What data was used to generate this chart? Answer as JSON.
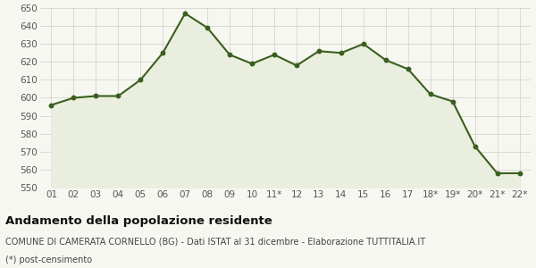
{
  "x_labels": [
    "01",
    "02",
    "03",
    "04",
    "05",
    "06",
    "07",
    "08",
    "09",
    "10",
    "11*",
    "12",
    "13",
    "14",
    "15",
    "16",
    "17",
    "18*",
    "19*",
    "20*",
    "21*",
    "22*"
  ],
  "y_values": [
    596,
    600,
    601,
    601,
    610,
    625,
    647,
    639,
    624,
    619,
    624,
    618,
    626,
    625,
    630,
    621,
    616,
    602,
    598,
    573,
    558,
    558
  ],
  "ylim": [
    550,
    650
  ],
  "yticks": [
    550,
    560,
    570,
    580,
    590,
    600,
    610,
    620,
    630,
    640,
    650
  ],
  "line_color": "#3a5f1e",
  "fill_color": "#eaeedf",
  "marker": "o",
  "marker_size": 3.2,
  "line_width": 1.5,
  "bg_color": "#f7f7f2",
  "grid_color": "#d0d0c8",
  "title": "Andamento della popolazione residente",
  "subtitle": "COMUNE DI CAMERATA CORNELLO (BG) - Dati ISTAT al 31 dicembre - Elaborazione TUTTITALIA.IT",
  "footnote": "(*) post-censimento",
  "title_fontsize": 9.5,
  "subtitle_fontsize": 7.0,
  "footnote_fontsize": 7.0,
  "tick_fontsize": 7.5
}
